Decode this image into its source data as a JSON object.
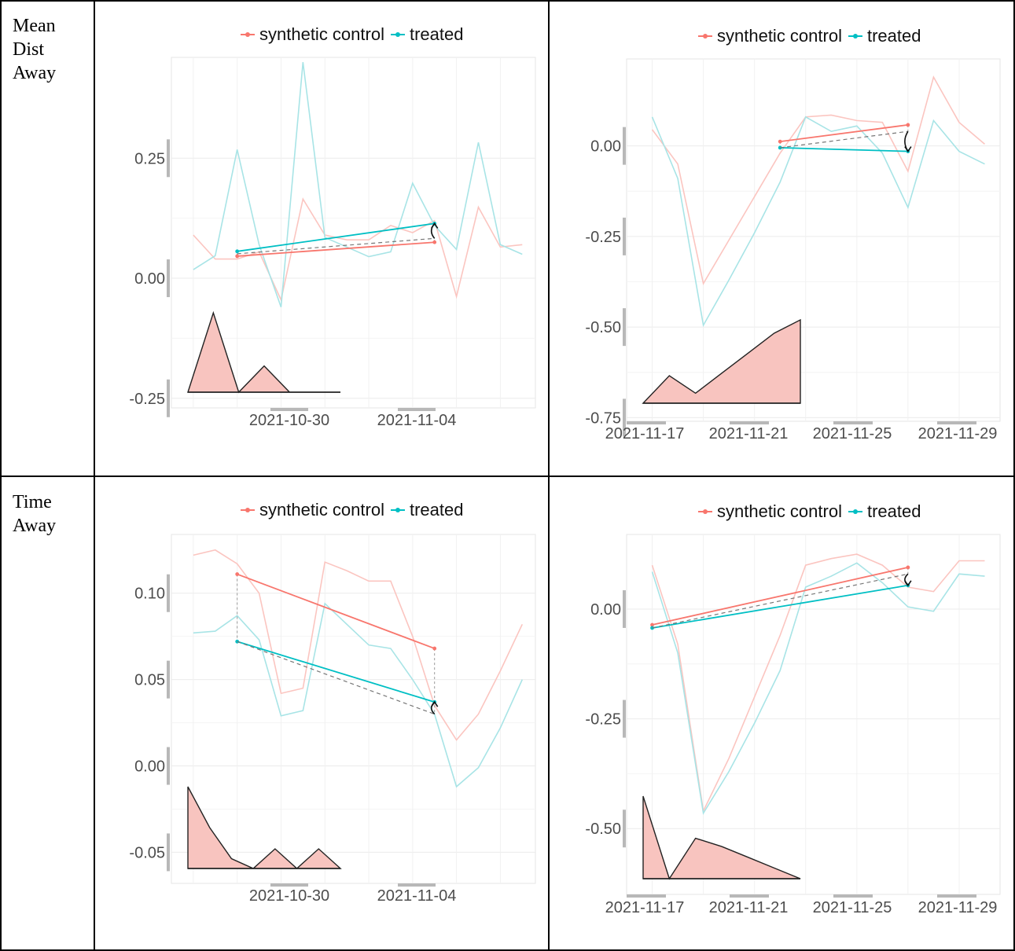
{
  "row_labels": [
    "Mean\nDist\nAway",
    "Time\nAway"
  ],
  "colors": {
    "synthetic": "#f8766d",
    "treated": "#00bfc4",
    "synthetic_faint": "#fbc5c0",
    "treated_faint": "#a8e4e6",
    "area_fill": "#f8c4bf"
  },
  "chart_data": [
    {
      "type": "line",
      "legend": [
        "synthetic control",
        "treated"
      ],
      "legend_position": "top",
      "x_ticks": [
        "2021-10-30",
        "2021-11-04"
      ],
      "y_ticks": [
        "0.25",
        "0.00",
        "-0.25"
      ],
      "x": [
        "2021-10-25",
        "2021-10-26",
        "2021-10-27",
        "2021-10-28",
        "2021-10-29",
        "2021-10-30",
        "2021-10-31",
        "2021-11-01",
        "2021-11-02",
        "2021-11-03",
        "2021-11-04",
        "2021-11-05",
        "2021-11-06",
        "2021-11-07",
        "2021-11-08",
        "2021-11-09"
      ],
      "series": [
        {
          "name": "synthetic control",
          "values": [
            0.09,
            0.04,
            0.04,
            0.055,
            -0.045,
            0.165,
            0.09,
            0.08,
            0.08,
            0.11,
            0.095,
            0.12,
            -0.038,
            0.148,
            0.065,
            0.07
          ]
        },
        {
          "name": "treated",
          "values": [
            0.018,
            0.047,
            0.268,
            0.07,
            -0.06,
            0.45,
            0.085,
            0.065,
            0.045,
            0.055,
            0.198,
            0.11,
            0.06,
            0.283,
            0.07,
            0.05
          ]
        }
      ],
      "segments": {
        "synthetic": [
          [
            "2021-10-27",
            0.046
          ],
          [
            "2021-11-05",
            0.075
          ]
        ],
        "treated": [
          [
            "2021-10-27",
            0.056
          ],
          [
            "2021-11-05",
            0.114
          ]
        ],
        "dashed": [
          [
            "2021-10-27",
            0.051
          ],
          [
            "2021-11-05",
            0.083
          ]
        ],
        "arrow": [
          [
            "2021-11-05",
            0.083
          ],
          [
            "2021-11-05",
            0.114
          ]
        ]
      },
      "inset": {
        "x": [
          "2021-10-26",
          "2021-10-27",
          "2021-10-28",
          "2021-10-29",
          "2021-10-30",
          "2021-10-31",
          "2021-11-01"
        ],
        "values": [
          0,
          1,
          0,
          0.33,
          0,
          0,
          0
        ]
      },
      "ylim": [
        -0.27,
        0.46
      ]
    },
    {
      "type": "line",
      "legend": [
        "synthetic control",
        "treated"
      ],
      "legend_position": "top",
      "x_ticks": [
        "2021-11-17",
        "2021-11-21",
        "2021-11-25",
        "2021-11-29"
      ],
      "y_ticks": [
        "0.00",
        "-0.25",
        "-0.50",
        "-0.75"
      ],
      "x": [
        "2021-11-17",
        "2021-11-18",
        "2021-11-19",
        "2021-11-20",
        "2021-11-21",
        "2021-11-22",
        "2021-11-23",
        "2021-11-24",
        "2021-11-25",
        "2021-11-26",
        "2021-11-27",
        "2021-11-28",
        "2021-11-29",
        "2021-11-30"
      ],
      "series": [
        {
          "name": "synthetic control",
          "values": [
            0.045,
            -0.05,
            -0.38,
            -0.26,
            -0.14,
            -0.02,
            0.08,
            0.085,
            0.07,
            0.065,
            -0.07,
            0.19,
            0.065,
            0.005
          ]
        },
        {
          "name": "treated",
          "values": [
            0.08,
            -0.09,
            -0.495,
            -0.37,
            -0.24,
            -0.1,
            0.08,
            0.04,
            0.055,
            -0.02,
            -0.17,
            0.07,
            -0.015,
            -0.05
          ]
        }
      ],
      "segments": {
        "synthetic": [
          [
            "2021-11-22",
            0.012
          ],
          [
            "2021-11-27",
            0.058
          ]
        ],
        "treated": [
          [
            "2021-11-22",
            -0.005
          ],
          [
            "2021-11-27",
            -0.015
          ]
        ],
        "dashed": [
          [
            "2021-11-22",
            -0.005
          ],
          [
            "2021-11-27",
            0.04
          ]
        ],
        "arrow": [
          [
            "2021-11-27",
            0.04
          ],
          [
            "2021-11-27",
            -0.015
          ]
        ]
      },
      "inset": {
        "x": [
          "2021-11-17",
          "2021-11-18",
          "2021-11-19",
          "2021-11-20",
          "2021-11-21",
          "2021-11-22",
          "2021-11-23"
        ],
        "values": [
          0,
          0.33,
          0.12,
          0.36,
          0.6,
          0.84,
          1.0
        ]
      },
      "ylim": [
        -0.76,
        0.24
      ]
    },
    {
      "type": "line",
      "legend": [
        "synthetic control",
        "treated"
      ],
      "legend_position": "top",
      "x_ticks": [
        "2021-10-30",
        "2021-11-04"
      ],
      "y_ticks": [
        "0.10",
        "0.05",
        "0.00",
        "-0.05"
      ],
      "x": [
        "2021-10-25",
        "2021-10-26",
        "2021-10-27",
        "2021-10-28",
        "2021-10-29",
        "2021-10-30",
        "2021-10-31",
        "2021-11-01",
        "2021-11-02",
        "2021-11-03",
        "2021-11-04",
        "2021-11-05",
        "2021-11-06",
        "2021-11-07",
        "2021-11-08",
        "2021-11-09"
      ],
      "series": [
        {
          "name": "synthetic control",
          "values": [
            0.122,
            0.125,
            0.117,
            0.1,
            0.042,
            0.045,
            0.118,
            0.113,
            0.107,
            0.107,
            0.075,
            0.035,
            0.015,
            0.03,
            0.055,
            0.082
          ]
        },
        {
          "name": "treated",
          "values": [
            0.077,
            0.078,
            0.087,
            0.073,
            0.029,
            0.032,
            0.094,
            0.082,
            0.07,
            0.068,
            0.05,
            0.03,
            -0.012,
            -0.001,
            0.022,
            0.05
          ]
        }
      ],
      "segments": {
        "synthetic": [
          [
            "2021-10-27",
            0.111
          ],
          [
            "2021-11-05",
            0.068
          ]
        ],
        "treated": [
          [
            "2021-10-27",
            0.072
          ],
          [
            "2021-11-05",
            0.037
          ]
        ],
        "dashed": [
          [
            "2021-10-27",
            0.072
          ],
          [
            "2021-11-05",
            0.03
          ]
        ],
        "arrow": [
          [
            "2021-11-05",
            0.03
          ],
          [
            "2021-11-05",
            0.037
          ]
        ]
      },
      "inset": {
        "x": [
          "2021-10-25",
          "2021-10-26",
          "2021-10-27",
          "2021-10-28",
          "2021-10-29",
          "2021-10-30",
          "2021-10-31",
          "2021-11-01"
        ],
        "values": [
          1.0,
          0.5,
          0.12,
          0.0,
          0.24,
          0.0,
          0.24,
          0.0
        ]
      },
      "ylim": [
        -0.068,
        0.134
      ]
    },
    {
      "type": "line",
      "legend": [
        "synthetic control",
        "treated"
      ],
      "legend_position": "top",
      "x_ticks": [
        "2021-11-17",
        "2021-11-21",
        "2021-11-25",
        "2021-11-29"
      ],
      "y_ticks": [
        "0.00",
        "-0.25",
        "-0.50"
      ],
      "x": [
        "2021-11-17",
        "2021-11-18",
        "2021-11-19",
        "2021-11-20",
        "2021-11-21",
        "2021-11-22",
        "2021-11-23",
        "2021-11-24",
        "2021-11-25",
        "2021-11-26",
        "2021-11-27",
        "2021-11-28",
        "2021-11-29",
        "2021-11-30"
      ],
      "series": [
        {
          "name": "synthetic control",
          "values": [
            0.1,
            -0.08,
            -0.46,
            -0.34,
            -0.2,
            -0.06,
            0.1,
            0.115,
            0.125,
            0.1,
            0.05,
            0.04,
            0.11,
            0.11
          ]
        },
        {
          "name": "treated",
          "values": [
            0.085,
            -0.1,
            -0.465,
            -0.37,
            -0.26,
            -0.14,
            0.05,
            0.075,
            0.105,
            0.06,
            0.005,
            -0.005,
            0.08,
            0.075
          ]
        }
      ],
      "segments": {
        "synthetic": [
          [
            "2021-11-17",
            -0.036
          ],
          [
            "2021-11-27",
            0.095
          ]
        ],
        "treated": [
          [
            "2021-11-17",
            -0.043
          ],
          [
            "2021-11-27",
            0.054
          ]
        ],
        "dashed": [
          [
            "2021-11-17",
            -0.043
          ],
          [
            "2021-11-27",
            0.08
          ]
        ],
        "arrow": [
          [
            "2021-11-27",
            0.08
          ],
          [
            "2021-11-27",
            0.054
          ]
        ]
      },
      "inset": {
        "x": [
          "2021-11-16",
          "2021-11-17",
          "2021-11-18",
          "2021-11-19",
          "2021-11-20",
          "2021-11-21",
          "2021-11-22"
        ],
        "values": [
          1.0,
          0.0,
          0.49,
          0.39,
          0.26,
          0.13,
          0.0
        ]
      },
      "ylim": [
        -0.65,
        0.17
      ]
    }
  ]
}
